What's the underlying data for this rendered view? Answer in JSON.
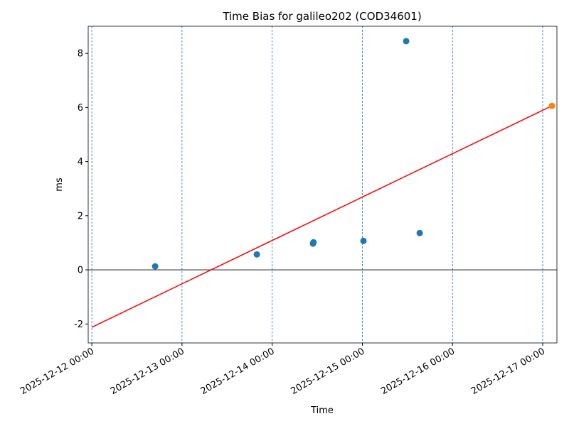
{
  "chart_data": {
    "type": "scatter",
    "title": "Time Bias for galileo202 (COD34601)",
    "xlabel": "Time",
    "ylabel": "ms",
    "series": [
      {
        "type": "scatter",
        "color": "#1f77b4",
        "x": [
          "2025-12-12 16:51",
          "2025-12-13 19:55",
          "2025-12-14 10:52",
          "2025-12-14 11:00",
          "2025-12-15 00:18",
          "2025-12-15 11:40",
          "2025-12-15 15:16"
        ],
        "values": [
          0.13,
          0.57,
          0.97,
          1.02,
          1.07,
          8.45,
          1.36
        ]
      },
      {
        "type": "line",
        "color": "#ff0000",
        "x": [
          "2025-12-12 00:00",
          "2025-12-17 02:28"
        ],
        "values": [
          -2.12,
          6.06
        ]
      },
      {
        "type": "scatter",
        "color": "#ff7f0e",
        "x": [
          "2025-12-17 02:28"
        ],
        "values": [
          6.06
        ]
      }
    ],
    "xlim": [
      "2025-12-11 23:02",
      "2025-12-17 03:47"
    ],
    "xticks": [
      "2025-12-12 00:00",
      "2025-12-13 00:00",
      "2025-12-14 00:00",
      "2025-12-15 00:00",
      "2025-12-16 00:00",
      "2025-12-17 00:00"
    ],
    "ylim": [
      -2.7,
      9.0
    ],
    "yticks": [
      -2,
      0,
      2,
      4,
      6,
      8
    ],
    "x_grid": true,
    "grid_color": "#1f77b4",
    "axhline": 0,
    "axhline_color": "#000000"
  }
}
